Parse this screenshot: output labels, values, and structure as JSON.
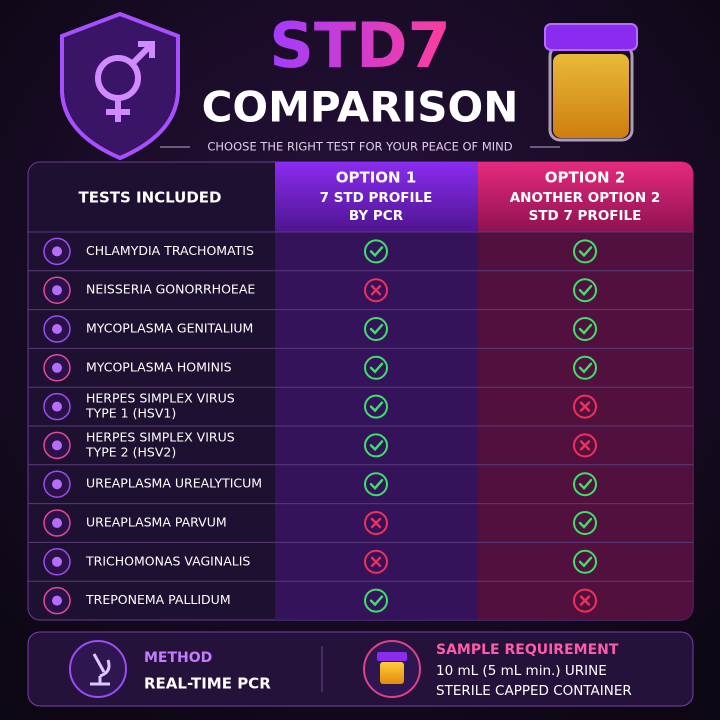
{
  "header": {
    "title": "STD7",
    "subtitle": "COMPARISON",
    "tagline": "CHOOSE THE RIGHT TEST FOR YOUR PEACE OF MIND"
  },
  "table": {
    "columns": [
      {
        "title": "TESTS INCLUDED"
      },
      {
        "title": "OPTION 1",
        "lines": [
          "7 STD PROFILE",
          "BY PCR"
        ]
      },
      {
        "title": "OPTION 2",
        "lines": [
          "ANOTHER OPTION 2",
          "STD 7 PROFILE"
        ]
      }
    ],
    "rows": [
      {
        "name": [
          "CHLAMYDIA TRACHOMATIS"
        ],
        "option1": true,
        "option2": true
      },
      {
        "name": [
          "NEISSERIA GONORRHOEAE"
        ],
        "option1": false,
        "option2": true
      },
      {
        "name": [
          "MYCOPLASMA GENITALIUM"
        ],
        "option1": true,
        "option2": true
      },
      {
        "name": [
          "MYCOPLASMA HOMINIS"
        ],
        "option1": true,
        "option2": true
      },
      {
        "name": [
          "HERPES SIMPLEX VIRUS",
          "TYPE 1 (HSV1)"
        ],
        "option1": true,
        "option2": false
      },
      {
        "name": [
          "HERPES SIMPLEX VIRUS",
          "TYPE 2 (HSV2)"
        ],
        "option1": true,
        "option2": false
      },
      {
        "name": [
          "UREAPLASMA UREALYTICUM"
        ],
        "option1": true,
        "option2": true
      },
      {
        "name": [
          "UREAPLASMA PARVUM"
        ],
        "option1": false,
        "option2": true
      },
      {
        "name": [
          "TRICHOMONAS VAGINALIS"
        ],
        "option1": false,
        "option2": true
      },
      {
        "name": [
          "TREPONEMA PALLIDUM"
        ],
        "option1": true,
        "option2": false
      }
    ]
  },
  "footer": {
    "method": {
      "label": "METHOD",
      "value": "REAL-TIME PCR"
    },
    "sample": {
      "label": "SAMPLE REQUIREMENT",
      "lines": [
        "10 mL (5 mL min.) URINE",
        "STERILE CAPPED CONTAINER"
      ]
    }
  }
}
